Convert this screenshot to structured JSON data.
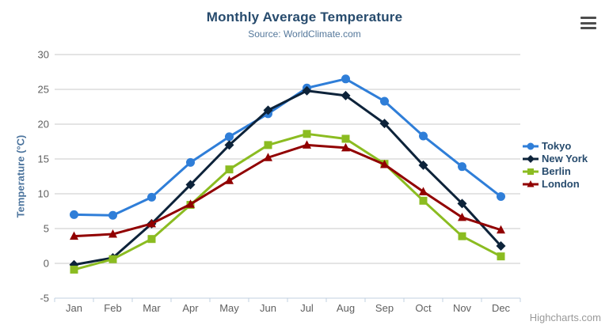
{
  "header": {
    "title": "Monthly Average Temperature",
    "subtitle": "Source: WorldClimate.com"
  },
  "chart_data": {
    "type": "line",
    "title": "Monthly Average Temperature",
    "subtitle": "Source: WorldClimate.com",
    "categories": [
      "Jan",
      "Feb",
      "Mar",
      "Apr",
      "May",
      "Jun",
      "Jul",
      "Aug",
      "Sep",
      "Oct",
      "Nov",
      "Dec"
    ],
    "series": [
      {
        "name": "Tokyo",
        "color": "#2f7ed8",
        "marker": "circle",
        "values": [
          7.0,
          6.9,
          9.5,
          14.5,
          18.2,
          21.5,
          25.2,
          26.5,
          23.3,
          18.3,
          13.9,
          9.6
        ]
      },
      {
        "name": "New York",
        "color": "#0d233a",
        "marker": "diamond",
        "values": [
          -0.2,
          0.8,
          5.7,
          11.3,
          17.0,
          22.0,
          24.8,
          24.1,
          20.1,
          14.1,
          8.6,
          2.5
        ]
      },
      {
        "name": "Berlin",
        "color": "#8bbc21",
        "marker": "square",
        "values": [
          -0.9,
          0.6,
          3.5,
          8.4,
          13.5,
          17.0,
          18.6,
          17.9,
          14.3,
          9.0,
          3.9,
          1.0
        ]
      },
      {
        "name": "London",
        "color": "#910000",
        "marker": "triangle",
        "values": [
          3.9,
          4.2,
          5.7,
          8.5,
          11.9,
          15.2,
          17.0,
          16.6,
          14.2,
          10.3,
          6.6,
          4.8
        ]
      }
    ],
    "xlabel": "",
    "ylabel": "Temperature (°C)",
    "ylim": [
      -5,
      30
    ],
    "yticks": [
      -5,
      0,
      5,
      10,
      15,
      20,
      25,
      30
    ],
    "grid": true,
    "legend_position": "right"
  },
  "credits": {
    "label": "Highcharts.com"
  },
  "colors": {
    "grid": "#c8c8c8",
    "axis_line": "#c0d0e0",
    "tick_label": "#606060",
    "title": "#274b6d",
    "subtitle": "#55789b",
    "axis_title": "#4d759e",
    "credits": "#999999"
  }
}
